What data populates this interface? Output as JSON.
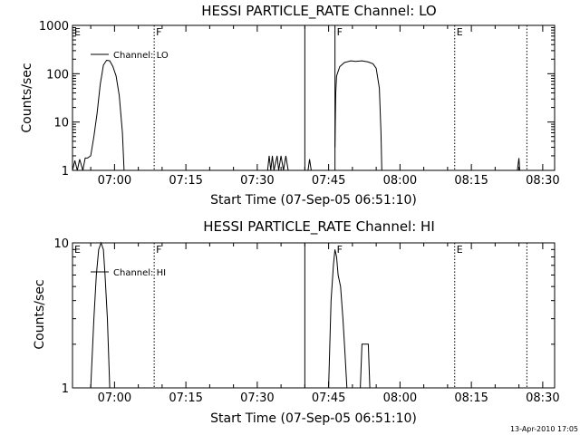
{
  "chart_data": [
    {
      "type": "line",
      "title": "HESSI PARTICLE_RATE Channel: LO",
      "xlabel": "Start Time (07-Sep-05 06:51:10)",
      "ylabel": "Counts/sec",
      "yscale": "log",
      "ylim": [
        1,
        1000
      ],
      "y_ticks": [
        1,
        10,
        100,
        1000
      ],
      "y_tick_labels": [
        "1",
        "10",
        "100",
        "1000"
      ],
      "xlim": [
        "06:51:10",
        "08:32:30"
      ],
      "x_ticks": [
        "07:00",
        "07:15",
        "07:30",
        "07:45",
        "08:00",
        "08:15",
        "08:30"
      ],
      "legend": "top-left",
      "legend_label": "Channel: LO",
      "markers": [
        {
          "label": "E",
          "time": "06:51:10",
          "style": "none"
        },
        {
          "label": "F",
          "time": "07:08:20",
          "style": "dotted"
        },
        {
          "label": "",
          "time": "07:40:00",
          "style": "solid"
        },
        {
          "label": "F",
          "time": "07:46:20",
          "style": "solid"
        },
        {
          "label": "E",
          "time": "08:11:30",
          "style": "dotted"
        },
        {
          "label": "",
          "time": "08:26:40",
          "style": "dotted"
        }
      ],
      "series": [
        {
          "name": "Channel: LO",
          "segments": [
            [
              [
                "06:51:10",
                1
              ],
              [
                "06:51:40",
                1.6
              ],
              [
                "06:52:10",
                1
              ],
              [
                "06:52:40",
                1.7
              ],
              [
                "06:53:20",
                1
              ],
              [
                "06:53:50",
                1.8
              ],
              [
                "06:54:20",
                1.8
              ],
              [
                "06:55:00",
                2
              ],
              [
                "06:55:40",
                5
              ],
              [
                "06:56:20",
                15
              ],
              [
                "06:57:00",
                60
              ],
              [
                "06:57:40",
                150
              ],
              [
                "06:58:20",
                190
              ],
              [
                "06:59:00",
                185
              ],
              [
                "06:59:40",
                140
              ],
              [
                "07:00:20",
                90
              ],
              [
                "07:01:00",
                35
              ],
              [
                "07:01:40",
                6
              ],
              [
                "07:02:00",
                1
              ]
            ],
            [
              [
                "07:32:10",
                1
              ],
              [
                "07:32:30",
                2
              ],
              [
                "07:32:50",
                1
              ],
              [
                "07:33:10",
                2
              ],
              [
                "07:33:30",
                1
              ],
              [
                "07:34:10",
                2
              ],
              [
                "07:34:30",
                1
              ],
              [
                "07:35:00",
                2
              ],
              [
                "07:35:30",
                1
              ],
              [
                "07:36:00",
                2
              ],
              [
                "07:36:30",
                1
              ]
            ],
            [
              [
                "07:40:40",
                1
              ],
              [
                "07:41:00",
                1.7
              ],
              [
                "07:41:20",
                1
              ]
            ],
            [
              [
                "07:46:20",
                3
              ],
              [
                "07:46:30",
                40
              ],
              [
                "07:46:40",
                90
              ],
              [
                "07:47:20",
                140
              ],
              [
                "07:48:20",
                170
              ],
              [
                "07:49:40",
                185
              ],
              [
                "07:50:40",
                180
              ],
              [
                "07:52:00",
                185
              ],
              [
                "07:53:20",
                175
              ],
              [
                "07:54:20",
                160
              ],
              [
                "07:55:00",
                130
              ],
              [
                "07:55:40",
                50
              ],
              [
                "07:56:00",
                6
              ],
              [
                "07:56:10",
                1
              ]
            ],
            [
              [
                "08:24:40",
                1
              ],
              [
                "08:25:00",
                1.8
              ],
              [
                "08:25:10",
                1
              ]
            ]
          ]
        }
      ]
    },
    {
      "type": "line",
      "title": "HESSI PARTICLE_RATE Channel: HI",
      "xlabel": "Start Time (07-Sep-05 06:51:10)",
      "ylabel": "Counts/sec",
      "yscale": "log",
      "ylim": [
        1,
        10
      ],
      "y_ticks": [
        1,
        10
      ],
      "y_tick_labels": [
        "1",
        "10"
      ],
      "xlim": [
        "06:51:10",
        "08:32:30"
      ],
      "x_ticks": [
        "07:00",
        "07:15",
        "07:30",
        "07:45",
        "08:00",
        "08:15",
        "08:30"
      ],
      "legend": "top-left",
      "legend_label": "Channel: HI",
      "markers": [
        {
          "label": "E",
          "time": "06:51:10",
          "style": "none"
        },
        {
          "label": "F",
          "time": "07:08:20",
          "style": "dotted"
        },
        {
          "label": "",
          "time": "07:40:00",
          "style": "solid"
        },
        {
          "label": "F",
          "time": "07:46:20",
          "style": "none"
        },
        {
          "label": "E",
          "time": "08:11:30",
          "style": "dotted"
        },
        {
          "label": "",
          "time": "08:26:40",
          "style": "dotted"
        }
      ],
      "series": [
        {
          "name": "Channel: HI",
          "segments": [
            [
              [
                "06:55:00",
                1
              ],
              [
                "06:55:40",
                3
              ],
              [
                "06:56:10",
                6
              ],
              [
                "06:56:40",
                9
              ],
              [
                "06:57:10",
                10
              ],
              [
                "06:57:40",
                9
              ],
              [
                "06:58:00",
                6
              ],
              [
                "06:58:30",
                3
              ],
              [
                "06:59:00",
                1
              ]
            ],
            [
              [
                "07:45:00",
                1
              ],
              [
                "07:45:30",
                4
              ],
              [
                "07:46:00",
                7
              ],
              [
                "07:46:20",
                9
              ],
              [
                "07:46:40",
                8
              ],
              [
                "07:47:00",
                6
              ],
              [
                "07:47:30",
                5
              ],
              [
                "07:48:00",
                3
              ],
              [
                "07:48:20",
                2
              ],
              [
                "07:48:50",
                1
              ]
            ],
            [
              [
                "07:51:40",
                1
              ],
              [
                "07:52:00",
                2
              ],
              [
                "07:53:20",
                2
              ],
              [
                "07:53:40",
                1
              ]
            ]
          ]
        }
      ]
    }
  ],
  "timestamp": "13-Apr-2010 17:05"
}
